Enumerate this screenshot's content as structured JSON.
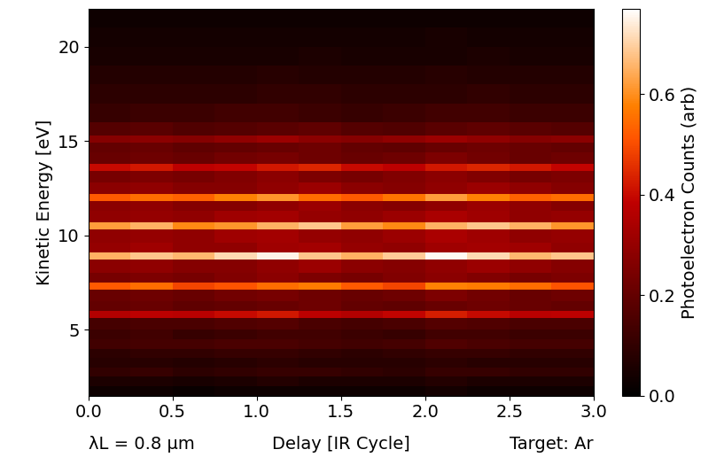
{
  "chart_data": {
    "type": "heatmap",
    "xlabel": "Delay [IR Cycle]",
    "ylabel": "Kinetic Energy [eV]",
    "annotations": [
      "λL = 0.8 μm",
      "Target: Ar"
    ],
    "colorbar_label": "Photoelectron Counts (arb)",
    "xlim": [
      0,
      3
    ],
    "xticks": [
      {
        "value": 0,
        "label": "0.0"
      },
      {
        "value": 0.5,
        "label": "0.5"
      },
      {
        "value": 1,
        "label": "1.0"
      },
      {
        "value": 1.5,
        "label": "1.5"
      },
      {
        "value": 2,
        "label": "2.0"
      },
      {
        "value": 2.5,
        "label": "2.5"
      },
      {
        "value": 3,
        "label": "3.0"
      }
    ],
    "ylim": [
      1.5,
      22
    ],
    "yticks": [
      5,
      10,
      15,
      20
    ],
    "clim": [
      0,
      0.77
    ],
    "cticks": [
      {
        "value": 0,
        "label": "0.0"
      },
      {
        "value": 0.2,
        "label": "0.2"
      },
      {
        "value": 0.4,
        "label": "0.4"
      },
      {
        "value": 0.6,
        "label": "0.6"
      }
    ],
    "x_edges": [
      0,
      0.25,
      0.5,
      0.75,
      1.0,
      1.25,
      1.5,
      1.75,
      2.0,
      2.25,
      2.5,
      2.75,
      3.0
    ],
    "y_edges": [
      1.5,
      2.0,
      2.5,
      3.0,
      3.5,
      4.0,
      4.5,
      5.0,
      5.6,
      6.0,
      6.5,
      7.1,
      7.5,
      8.0,
      8.7,
      9.1,
      9.6,
      10.3,
      10.7,
      11.3,
      11.8,
      12.2,
      12.8,
      13.4,
      13.8,
      14.4,
      14.9,
      15.3,
      16.0,
      17.0,
      18.0,
      19.0,
      20.0,
      21.0,
      22.0
    ],
    "cells": [
      [
        0.03,
        0.03,
        0.02,
        0.03,
        0.03,
        0.03,
        0.03,
        0.03,
        0.04,
        0.03,
        0.03,
        0.03
      ],
      [
        0.06,
        0.06,
        0.05,
        0.06,
        0.07,
        0.06,
        0.06,
        0.06,
        0.07,
        0.06,
        0.06,
        0.06
      ],
      [
        0.1,
        0.11,
        0.09,
        0.1,
        0.11,
        0.11,
        0.1,
        0.09,
        0.11,
        0.11,
        0.1,
        0.1
      ],
      [
        0.08,
        0.08,
        0.07,
        0.08,
        0.09,
        0.08,
        0.08,
        0.08,
        0.09,
        0.08,
        0.08,
        0.08
      ],
      [
        0.09,
        0.1,
        0.1,
        0.11,
        0.11,
        0.1,
        0.09,
        0.1,
        0.11,
        0.11,
        0.1,
        0.1
      ],
      [
        0.13,
        0.14,
        0.14,
        0.15,
        0.15,
        0.14,
        0.13,
        0.14,
        0.16,
        0.15,
        0.14,
        0.14
      ],
      [
        0.12,
        0.13,
        0.11,
        0.12,
        0.13,
        0.13,
        0.12,
        0.11,
        0.13,
        0.13,
        0.12,
        0.12
      ],
      [
        0.14,
        0.15,
        0.15,
        0.16,
        0.17,
        0.15,
        0.14,
        0.15,
        0.17,
        0.16,
        0.15,
        0.15
      ],
      [
        0.36,
        0.38,
        0.37,
        0.4,
        0.42,
        0.38,
        0.36,
        0.39,
        0.43,
        0.4,
        0.37,
        0.38
      ],
      [
        0.2,
        0.21,
        0.19,
        0.2,
        0.21,
        0.22,
        0.2,
        0.19,
        0.21,
        0.22,
        0.21,
        0.2
      ],
      [
        0.21,
        0.22,
        0.21,
        0.23,
        0.24,
        0.22,
        0.21,
        0.22,
        0.25,
        0.23,
        0.21,
        0.22
      ],
      [
        0.52,
        0.55,
        0.49,
        0.51,
        0.55,
        0.57,
        0.52,
        0.49,
        0.58,
        0.57,
        0.55,
        0.51
      ],
      [
        0.24,
        0.25,
        0.24,
        0.26,
        0.28,
        0.25,
        0.24,
        0.26,
        0.28,
        0.26,
        0.24,
        0.25
      ],
      [
        0.28,
        0.29,
        0.27,
        0.27,
        0.29,
        0.31,
        0.28,
        0.27,
        0.29,
        0.31,
        0.29,
        0.27
      ],
      [
        0.65,
        0.68,
        0.66,
        0.71,
        0.75,
        0.68,
        0.65,
        0.69,
        0.76,
        0.71,
        0.66,
        0.68
      ],
      [
        0.3,
        0.32,
        0.29,
        0.29,
        0.32,
        0.33,
        0.3,
        0.29,
        0.32,
        0.33,
        0.32,
        0.29
      ],
      [
        0.29,
        0.3,
        0.29,
        0.32,
        0.33,
        0.3,
        0.29,
        0.31,
        0.34,
        0.32,
        0.29,
        0.3
      ],
      [
        0.62,
        0.65,
        0.59,
        0.61,
        0.65,
        0.68,
        0.62,
        0.59,
        0.65,
        0.68,
        0.65,
        0.61
      ],
      [
        0.29,
        0.3,
        0.29,
        0.32,
        0.33,
        0.3,
        0.29,
        0.31,
        0.34,
        0.32,
        0.29,
        0.3
      ],
      [
        0.28,
        0.29,
        0.27,
        0.27,
        0.29,
        0.31,
        0.28,
        0.27,
        0.29,
        0.31,
        0.29,
        0.27
      ],
      [
        0.52,
        0.55,
        0.53,
        0.58,
        0.61,
        0.55,
        0.52,
        0.56,
        0.62,
        0.58,
        0.53,
        0.55
      ],
      [
        0.28,
        0.29,
        0.27,
        0.27,
        0.29,
        0.31,
        0.28,
        0.27,
        0.29,
        0.31,
        0.29,
        0.27
      ],
      [
        0.24,
        0.25,
        0.24,
        0.26,
        0.28,
        0.25,
        0.24,
        0.26,
        0.28,
        0.26,
        0.24,
        0.25
      ],
      [
        0.4,
        0.42,
        0.38,
        0.39,
        0.42,
        0.44,
        0.4,
        0.38,
        0.42,
        0.44,
        0.42,
        0.39
      ],
      [
        0.21,
        0.22,
        0.21,
        0.23,
        0.24,
        0.22,
        0.21,
        0.22,
        0.25,
        0.23,
        0.21,
        0.22
      ],
      [
        0.2,
        0.21,
        0.19,
        0.2,
        0.21,
        0.22,
        0.2,
        0.19,
        0.21,
        0.22,
        0.21,
        0.2
      ],
      [
        0.27,
        0.28,
        0.27,
        0.29,
        0.31,
        0.28,
        0.27,
        0.29,
        0.31,
        0.29,
        0.27,
        0.28
      ],
      [
        0.17,
        0.18,
        0.16,
        0.17,
        0.18,
        0.19,
        0.17,
        0.16,
        0.18,
        0.19,
        0.18,
        0.17
      ],
      [
        0.11,
        0.12,
        0.12,
        0.13,
        0.13,
        0.12,
        0.11,
        0.12,
        0.13,
        0.13,
        0.12,
        0.12
      ],
      [
        0.09,
        0.09,
        0.09,
        0.09,
        0.1,
        0.1,
        0.09,
        0.09,
        0.09,
        0.1,
        0.09,
        0.09
      ],
      [
        0.07,
        0.07,
        0.07,
        0.07,
        0.08,
        0.07,
        0.07,
        0.07,
        0.08,
        0.07,
        0.07,
        0.07
      ],
      [
        0.05,
        0.05,
        0.05,
        0.05,
        0.05,
        0.06,
        0.05,
        0.05,
        0.05,
        0.06,
        0.05,
        0.05
      ],
      [
        0.04,
        0.04,
        0.04,
        0.04,
        0.04,
        0.04,
        0.04,
        0.04,
        0.05,
        0.04,
        0.04,
        0.04
      ],
      [
        0.03,
        0.03,
        0.03,
        0.03,
        0.03,
        0.03,
        0.03,
        0.03,
        0.03,
        0.03,
        0.03,
        0.03
      ]
    ]
  }
}
